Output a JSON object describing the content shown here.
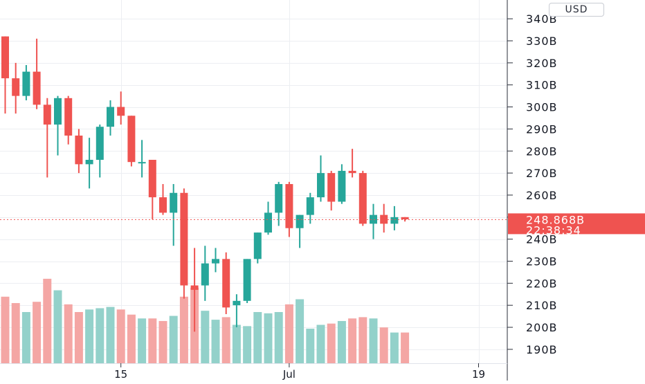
{
  "currency_label": "USD",
  "colors": {
    "up": "#26a69a",
    "down": "#ef5350",
    "vol_up": "#93d1ca",
    "vol_down": "#f4a6a4",
    "grid": "#eceef2",
    "axis_text": "#131722",
    "price_line": "#ef5350"
  },
  "chart_data": {
    "type": "candlestick",
    "y_unit": "B",
    "ylim": [
      184,
      345
    ],
    "y_ticks": [
      "190B",
      "200B",
      "210B",
      "220B",
      "230B",
      "240B",
      "250B",
      "260B",
      "270B",
      "280B",
      "290B",
      "300B",
      "310B",
      "320B",
      "330B",
      "340B"
    ],
    "y_tick_values": [
      190,
      200,
      210,
      220,
      230,
      240,
      250,
      260,
      270,
      280,
      290,
      300,
      310,
      320,
      330,
      340
    ],
    "x_ticks": [
      {
        "label": "15",
        "index": 11
      },
      {
        "label": "Jul",
        "index": 27
      },
      {
        "label": "19",
        "index": 45
      }
    ],
    "last_price_label": "248.868B",
    "countdown_label": "22:38:34",
    "last_price": 248.868,
    "candles": [
      {
        "o": 332,
        "h": 332,
        "l": 297,
        "c": 313
      },
      {
        "o": 313,
        "h": 320,
        "l": 297,
        "c": 305
      },
      {
        "o": 305,
        "h": 319,
        "l": 303,
        "c": 316
      },
      {
        "o": 316,
        "h": 331,
        "l": 299,
        "c": 301
      },
      {
        "o": 301,
        "h": 304,
        "l": 268,
        "c": 292
      },
      {
        "o": 292,
        "h": 305,
        "l": 278,
        "c": 304
      },
      {
        "o": 304,
        "h": 305,
        "l": 283,
        "c": 287
      },
      {
        "o": 287,
        "h": 290,
        "l": 270,
        "c": 274
      },
      {
        "o": 274,
        "h": 286,
        "l": 263,
        "c": 276
      },
      {
        "o": 276,
        "h": 292,
        "l": 268,
        "c": 291
      },
      {
        "o": 291,
        "h": 303,
        "l": 287,
        "c": 300
      },
      {
        "o": 300,
        "h": 307,
        "l": 292,
        "c": 296
      },
      {
        "o": 296,
        "h": 296,
        "l": 273,
        "c": 275
      },
      {
        "o": 275,
        "h": 285,
        "l": 268,
        "c": 275
      },
      {
        "o": 276,
        "h": 276,
        "l": 249,
        "c": 259
      },
      {
        "o": 259,
        "h": 265,
        "l": 251,
        "c": 252
      },
      {
        "o": 252,
        "h": 265,
        "l": 237,
        "c": 261
      },
      {
        "o": 261,
        "h": 263,
        "l": 213,
        "c": 219
      },
      {
        "o": 219,
        "h": 236,
        "l": 198,
        "c": 217
      },
      {
        "o": 219,
        "h": 237,
        "l": 212,
        "c": 229
      },
      {
        "o": 229,
        "h": 236,
        "l": 225,
        "c": 231
      },
      {
        "o": 231,
        "h": 234,
        "l": 206,
        "c": 209
      },
      {
        "o": 210,
        "h": 215,
        "l": 200,
        "c": 212
      },
      {
        "o": 212,
        "h": 231,
        "l": 211,
        "c": 231
      },
      {
        "o": 231,
        "h": 243,
        "l": 229,
        "c": 243
      },
      {
        "o": 243,
        "h": 257,
        "l": 242,
        "c": 252
      },
      {
        "o": 252,
        "h": 266,
        "l": 246,
        "c": 265
      },
      {
        "o": 265,
        "h": 266,
        "l": 241,
        "c": 245
      },
      {
        "o": 245,
        "h": 251,
        "l": 236,
        "c": 251
      },
      {
        "o": 251,
        "h": 261,
        "l": 247,
        "c": 259
      },
      {
        "o": 259,
        "h": 278,
        "l": 257,
        "c": 270
      },
      {
        "o": 270,
        "h": 271,
        "l": 253,
        "c": 257
      },
      {
        "o": 257,
        "h": 274,
        "l": 256,
        "c": 271
      },
      {
        "o": 271,
        "h": 281,
        "l": 268,
        "c": 270
      },
      {
        "o": 270,
        "h": 271,
        "l": 246,
        "c": 247
      },
      {
        "o": 247,
        "h": 256,
        "l": 240,
        "c": 251
      },
      {
        "o": 251,
        "h": 256,
        "l": 243,
        "c": 247
      },
      {
        "o": 247,
        "h": 255,
        "l": 244,
        "c": 250
      },
      {
        "o": 250,
        "h": 250,
        "l": 248,
        "c": 249
      }
    ],
    "volume": [
      0.52,
      0.47,
      0.4,
      0.48,
      0.66,
      0.57,
      0.46,
      0.4,
      0.42,
      0.43,
      0.44,
      0.42,
      0.38,
      0.35,
      0.35,
      0.33,
      0.37,
      0.52,
      0.59,
      0.41,
      0.34,
      0.36,
      0.3,
      0.29,
      0.4,
      0.39,
      0.4,
      0.46,
      0.5,
      0.27,
      0.3,
      0.31,
      0.33,
      0.35,
      0.36,
      0.35,
      0.28,
      0.24,
      0.24
    ]
  }
}
